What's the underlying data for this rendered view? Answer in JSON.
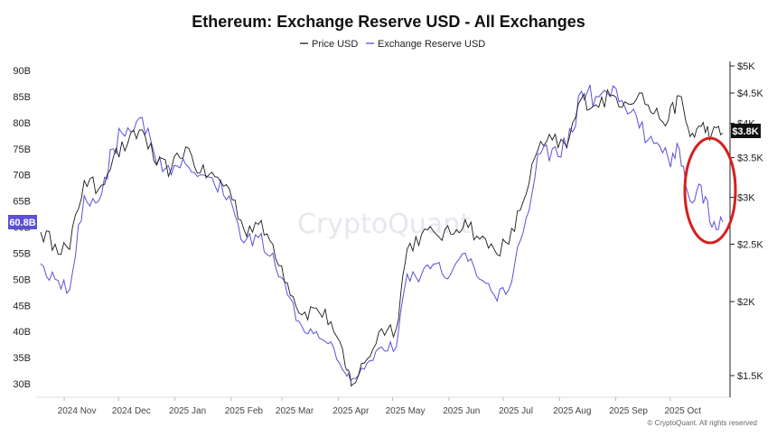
{
  "chart_data": {
    "type": "line",
    "title": "Ethereum: Exchange Reserve USD - All Exchanges",
    "legend": [
      {
        "name": "Price USD",
        "color": "#1a1a1a"
      },
      {
        "name": "Exchange Reserve USD",
        "color": "#5b50d6"
      }
    ],
    "x_tick_labels": [
      "2024 Nov",
      "2024 Dec",
      "2025 Jan",
      "2025 Feb",
      "2025 Mar",
      "2025 Apr",
      "2025 May",
      "2025 Jun",
      "2025 Jul",
      "2025 Aug",
      "2025 Sep",
      "2025 Oct"
    ],
    "x_dates": [
      "2024-10-19",
      "2024-10-27",
      "2024-11-04",
      "2024-11-12",
      "2024-11-20",
      "2024-11-28",
      "2024-12-06",
      "2024-12-14",
      "2024-12-22",
      "2024-12-30",
      "2025-01-07",
      "2025-01-15",
      "2025-01-23",
      "2025-01-31",
      "2025-02-08",
      "2025-02-16",
      "2025-02-24",
      "2025-03-04",
      "2025-03-12",
      "2025-03-20",
      "2025-03-28",
      "2025-04-05",
      "2025-04-09",
      "2025-04-17",
      "2025-04-25",
      "2025-05-03",
      "2025-05-09",
      "2025-05-17",
      "2025-05-25",
      "2025-06-02",
      "2025-06-10",
      "2025-06-18",
      "2025-06-26",
      "2025-07-04",
      "2025-07-12",
      "2025-07-20",
      "2025-07-28",
      "2025-08-05",
      "2025-08-13",
      "2025-08-21",
      "2025-08-29",
      "2025-09-06",
      "2025-09-14",
      "2025-09-22",
      "2025-09-30",
      "2025-10-06",
      "2025-10-12",
      "2025-10-18",
      "2025-10-24",
      "2025-10-30"
    ],
    "series": [
      {
        "name": "Price USD",
        "axis": "right",
        "values": [
          2620,
          2500,
          2450,
          3200,
          3100,
          3500,
          3700,
          3900,
          3400,
          3350,
          3650,
          3300,
          3250,
          3100,
          2650,
          2700,
          2500,
          2150,
          1900,
          1950,
          1850,
          1550,
          1450,
          1600,
          1800,
          1800,
          2450,
          2600,
          2600,
          2600,
          2750,
          2550,
          2450,
          2500,
          2950,
          3600,
          3750,
          3650,
          4400,
          4300,
          4450,
          4350,
          4500,
          4150,
          4050,
          4450,
          3800,
          3950,
          3850,
          3850
        ]
      },
      {
        "name": "Exchange Reserve USD",
        "axis": "left",
        "values": [
          53,
          50,
          48,
          66,
          65,
          75,
          79,
          81,
          72,
          70,
          72,
          70,
          68,
          66,
          57,
          58,
          55,
          47,
          41,
          40,
          38,
          32,
          31,
          34,
          37,
          37,
          51,
          51,
          53,
          51,
          55,
          50,
          47,
          48,
          59,
          74,
          75,
          75,
          86,
          85,
          85,
          83,
          79,
          76,
          73,
          75,
          65,
          68,
          60,
          61
        ]
      }
    ],
    "y_left": {
      "ticks": [
        "30B",
        "35B",
        "40B",
        "45B",
        "50B",
        "55B",
        "60B",
        "65B",
        "70B",
        "75B",
        "80B",
        "85B",
        "90B"
      ],
      "min": 30,
      "max": 90,
      "unit": "B"
    },
    "y_right": {
      "ticks": [
        "$1.5K",
        "$2K",
        "$2.5K",
        "$3K",
        "$3.5K",
        "$4K",
        "$4.5K",
        "$5K"
      ],
      "values": [
        1500,
        2000,
        2500,
        3000,
        3500,
        4000,
        4500,
        5000
      ],
      "scale": "log"
    },
    "current_left_label": "60.8B",
    "current_right_label": "$3.8K",
    "annotation": {
      "type": "red ellipse",
      "target": "late October 2025 drop",
      "color": "#d61f1f"
    },
    "grid": false,
    "legend_placement": "top-center"
  },
  "watermark": "CryptoQuant",
  "copyright": "© CryptoQuant. All rights reserved"
}
